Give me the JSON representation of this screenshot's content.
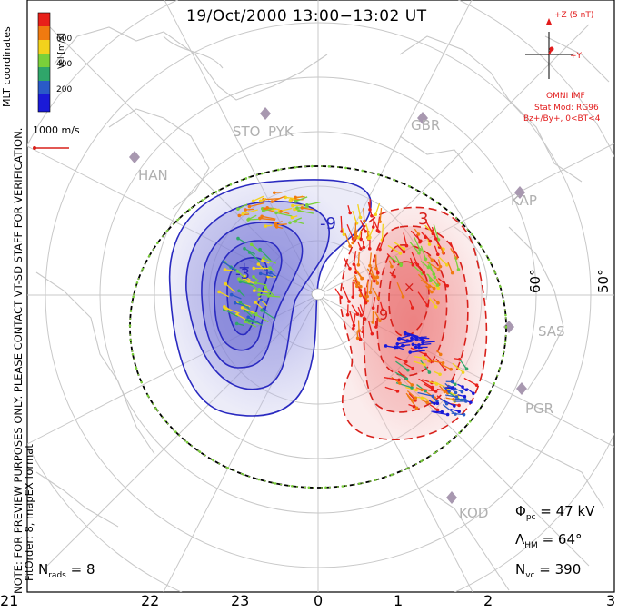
{
  "title": "19/Oct/2000 13:00−13:02 UT",
  "side_note": "NOTE: FOR PREVIEW PURPOSES ONLY. PLEASE CONTACT VT-SD STAFF FOR VERIFICATION.",
  "fit_info": "FitOrder: 8, mapEX format",
  "coord_label": "MLT coordinates",
  "colorbar": {
    "axis_label": "Vel [m/s]",
    "ticks": [
      "600",
      "400",
      "200"
    ],
    "colors": [
      "#e8201a",
      "#f07a10",
      "#f2d21c",
      "#7ad03a",
      "#2fa66a",
      "#2a5ac8",
      "#1a1ad8"
    ]
  },
  "velocity_scale": "1000 m/s",
  "imf": {
    "z_label": "+Z (5 nT)",
    "y_label": "+Y",
    "source": "OMNI IMF",
    "model": "Stat Mod: RG96",
    "condition": "Bz+/By+, 0<BT<4"
  },
  "stations": [
    "STO",
    "PYK",
    "GBR",
    "HAN",
    "KAP",
    "SAS",
    "PGR",
    "KOD"
  ],
  "latitude_labels": [
    "60°",
    "50°"
  ],
  "potential_labels": [
    "-9",
    "-3",
    "3",
    "9"
  ],
  "mlt_labels": [
    "21",
    "22",
    "23",
    "0",
    "1",
    "2",
    "3"
  ],
  "stats": {
    "phi_pc_symbol": "Φ",
    "phi_pc_sub": "pc",
    "phi_pc_value": "= 47 kV",
    "lambda_symbol": "Λ",
    "lambda_sub": "HM",
    "lambda_value": "= 64°",
    "nvc_symbol": "N",
    "nvc_sub": "vc",
    "nvc_value": "= 390",
    "nrads_symbol": "N",
    "nrads_sub": "rads",
    "nrads_value": "= 8"
  },
  "colors": {
    "dusk_cell": "#2a2ac0",
    "dawn_cell": "#d8201a",
    "map_lines": "#c8c8c8",
    "annotation": "#e21b1b"
  }
}
